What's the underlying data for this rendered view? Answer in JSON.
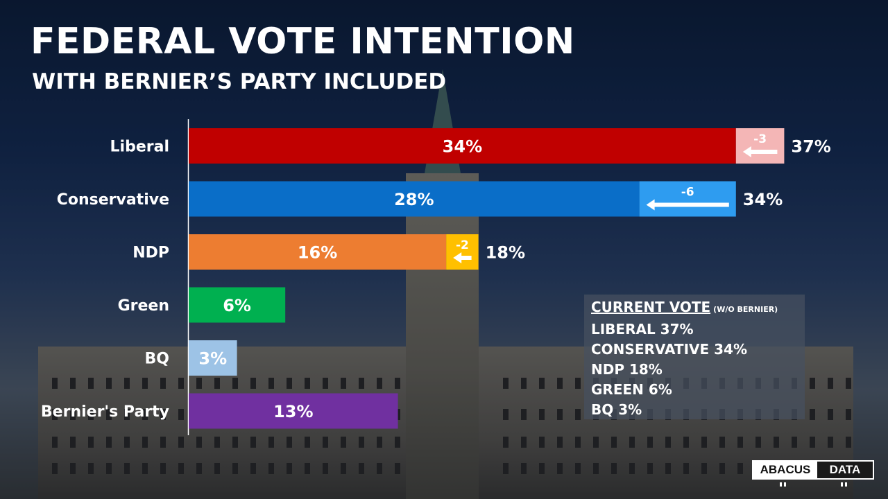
{
  "title": "FEDERAL VOTE INTENTION",
  "subtitle": "WITH BERNIER’S PARTY INCLUDED",
  "chart_data": {
    "type": "bar",
    "orientation": "horizontal",
    "stacked": true,
    "xlim": [
      0,
      40
    ],
    "grid": false,
    "categories": [
      "Liberal",
      "Conservative",
      "NDP",
      "Green",
      "BQ",
      "Bernier's Party"
    ],
    "series": [
      {
        "values": [
          34,
          28,
          16,
          6,
          3,
          13
        ],
        "labels": [
          "34%",
          "28%",
          "16%",
          "6%",
          "3%",
          "13%"
        ],
        "colors": [
          "#c00000",
          "#0a6ec8",
          "#ed7d31",
          "#00b050",
          "#9dc3e6",
          "#7030a0"
        ]
      },
      {
        "values": [
          3,
          6,
          2,
          0,
          0,
          0
        ],
        "labels": [
          "-3",
          "-6",
          "-2",
          "",
          "",
          ""
        ],
        "colors": [
          "#f4b6b6",
          "#2e9cf0",
          "#ffc000",
          "",
          "",
          ""
        ]
      }
    ],
    "totals": [
      "37%",
      "34%",
      "18%",
      "",
      "",
      ""
    ]
  },
  "current_vote": {
    "title": "CURRENT VOTE",
    "note": "(W/O BERNIER)",
    "items": [
      "LIBERAL 37%",
      "CONSERVATIVE 34%",
      "NDP 18%",
      "GREEN 6%",
      "BQ 3%"
    ]
  },
  "logo": {
    "part1": "ABACUS",
    "part2": "DATA"
  },
  "colors": {
    "axis": "#ffffff",
    "text": "#ffffff",
    "arrow": "#ffffff"
  }
}
